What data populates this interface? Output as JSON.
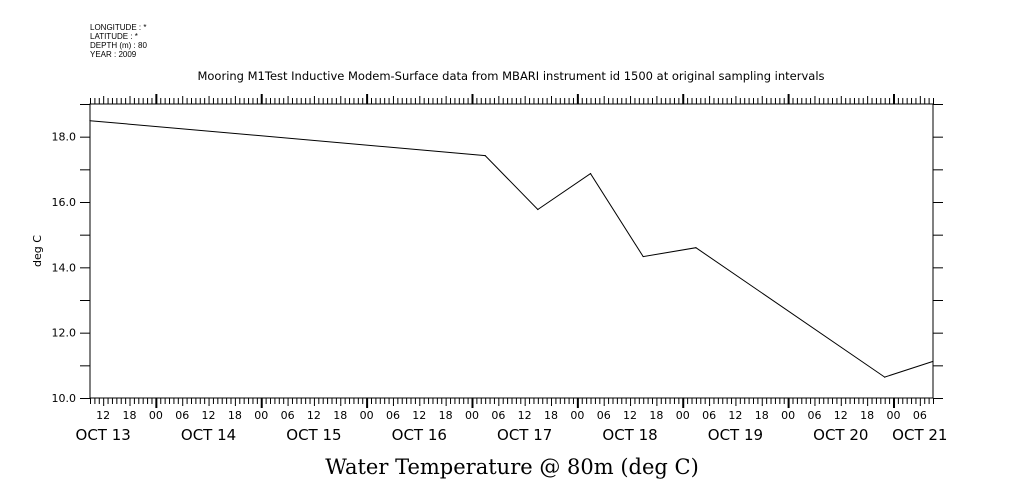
{
  "header": {
    "longitude": "LONGITUDE : *",
    "latitude": "LATITUDE : *",
    "depth": "DEPTH (m) : 80",
    "year": "YEAR : 2009"
  },
  "chart_data": {
    "type": "line",
    "title": "Mooring M1Test Inductive Modem-Surface data from MBARI instrument id 1500 at original sampling intervals",
    "xlabel": "Water Temperature @ 80m (deg C)",
    "ylabel": "deg C",
    "x_units": "hours since OCT 13 2009 00:00",
    "xlim": [
      9,
      201
    ],
    "ylim": [
      10,
      19
    ],
    "yticks": [
      10.0,
      12.0,
      14.0,
      16.0,
      18.0
    ],
    "ytick_labels": [
      "10.0",
      "12.0",
      "14.0",
      "16.0",
      "18.0"
    ],
    "hour_tick_labels": [
      "12",
      "18",
      "00",
      "06",
      "12",
      "18",
      "00",
      "06",
      "12",
      "18",
      "00",
      "06",
      "12",
      "18",
      "00",
      "06",
      "12",
      "18",
      "00",
      "06",
      "12",
      "18",
      "00",
      "06",
      "12",
      "18",
      "00",
      "06",
      "12",
      "18",
      "00",
      "06"
    ],
    "day_labels": [
      {
        "label": "OCT 13",
        "hour": 12
      },
      {
        "label": "OCT 14",
        "hour": 36
      },
      {
        "label": "OCT 15",
        "hour": 60
      },
      {
        "label": "OCT 16",
        "hour": 84
      },
      {
        "label": "OCT 17",
        "hour": 108
      },
      {
        "label": "OCT 18",
        "hour": 132
      },
      {
        "label": "OCT 19",
        "hour": 156
      },
      {
        "label": "OCT 20",
        "hour": 180
      },
      {
        "label": "OCT 21",
        "hour": 198
      }
    ],
    "grid": false,
    "series": [
      {
        "name": "Water Temperature",
        "color": "#000000",
        "x": [
          9,
          99,
          111,
          123,
          135,
          147,
          190,
          201
        ],
        "y": [
          18.49,
          17.42,
          15.77,
          16.87,
          14.33,
          14.6,
          10.64,
          11.12
        ]
      }
    ]
  }
}
